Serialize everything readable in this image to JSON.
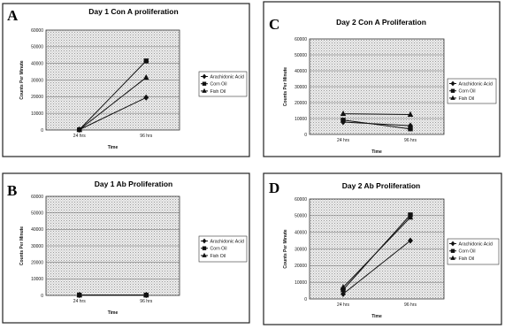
{
  "chart_data": [
    {
      "panel": "A",
      "type": "line",
      "title": "Day 1 Con A proliferation",
      "xlabel": "Time",
      "ylabel": "Counts Per Minute",
      "categories": [
        "24 hrs",
        "96 hrs"
      ],
      "ylim": [
        0,
        60000
      ],
      "yticks": [
        "0",
        "10000",
        "20000",
        "30000",
        "40000",
        "50000",
        "60000"
      ],
      "grid": true,
      "legend_position": "right",
      "series": [
        {
          "name": "Arachidonic Acid",
          "marker": "diamond",
          "values": [
            200,
            19500
          ]
        },
        {
          "name": "Corn Oil",
          "marker": "square",
          "values": [
            200,
            41500
          ]
        },
        {
          "name": "Fish Oil",
          "marker": "triangle",
          "values": [
            200,
            31500
          ]
        }
      ]
    },
    {
      "panel": "C",
      "type": "line",
      "title": "Day 2 Con A Proliferation",
      "xlabel": "Time",
      "ylabel": "Counts Per Minute",
      "categories": [
        "24 hrs",
        "96 hrs"
      ],
      "ylim": [
        0,
        60000
      ],
      "yticks": [
        "0",
        "10000",
        "20000",
        "30000",
        "40000",
        "50000",
        "60000"
      ],
      "grid": true,
      "legend_position": "right",
      "series": [
        {
          "name": "Arachidonic Acid",
          "marker": "diamond",
          "values": [
            7800,
            5500
          ]
        },
        {
          "name": "Corn Oil",
          "marker": "square",
          "values": [
            9000,
            3500
          ]
        },
        {
          "name": "Fish Oil",
          "marker": "triangle",
          "values": [
            13000,
            12500
          ]
        }
      ]
    },
    {
      "panel": "B",
      "type": "line",
      "title": "Day 1 Ab Proliferation",
      "xlabel": "Time",
      "ylabel": "Counts Per Minute",
      "categories": [
        "24 hrs",
        "96 hrs"
      ],
      "ylim": [
        0,
        60000
      ],
      "yticks": [
        "0",
        "10000",
        "20000",
        "30000",
        "40000",
        "50000",
        "60000"
      ],
      "grid": true,
      "legend_position": "right",
      "series": [
        {
          "name": "Arachidonic Acid",
          "marker": "diamond",
          "values": [
            200,
            200
          ]
        },
        {
          "name": "Corn Oil",
          "marker": "square",
          "values": [
            200,
            200
          ]
        },
        {
          "name": "Fish Oil",
          "marker": "triangle",
          "values": [
            200,
            200
          ]
        }
      ]
    },
    {
      "panel": "D",
      "type": "line",
      "title": "Day 2 Ab Proliferation",
      "xlabel": "Time",
      "ylabel": "Counts Per Minute",
      "categories": [
        "24 hrs",
        "96 hrs"
      ],
      "ylim": [
        0,
        60000
      ],
      "yticks": [
        "0",
        "10000",
        "20000",
        "30000",
        "40000",
        "50000",
        "60000"
      ],
      "grid": true,
      "legend_position": "right",
      "series": [
        {
          "name": "Arachidonic Acid",
          "marker": "diamond",
          "values": [
            3000,
            35000
          ]
        },
        {
          "name": "Corn Oil",
          "marker": "square",
          "values": [
            5500,
            50500
          ]
        },
        {
          "name": "Fish Oil",
          "marker": "triangle",
          "values": [
            7000,
            49000
          ]
        }
      ]
    }
  ]
}
